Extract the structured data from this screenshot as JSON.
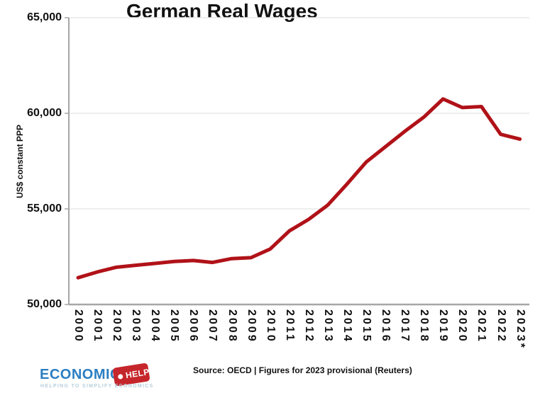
{
  "chart_data": {
    "type": "line",
    "title": "German Real Wages",
    "ylabel": "US$ constant PPP",
    "xlabel": "",
    "legend": "none",
    "grid": "horizontal-light",
    "ylim": [
      50000,
      65000
    ],
    "x_tick_labels": [
      "2000",
      "2001",
      "2002",
      "2003",
      "2004",
      "2005",
      "2006",
      "2007",
      "2008",
      "2009",
      "2010",
      "2011",
      "2012",
      "2013",
      "2014",
      "2015",
      "2016",
      "2017",
      "2018",
      "2019",
      "2020",
      "2021",
      "2022",
      "2023*"
    ],
    "y_ticks": [
      {
        "label": "65,000",
        "value": 65000
      },
      {
        "label": "60,000",
        "value": 60000
      },
      {
        "label": "55,000",
        "value": 55000
      },
      {
        "label": "50,000",
        "value": 50000
      }
    ],
    "gridline_values": [
      55000,
      60000,
      65000
    ],
    "series": [
      {
        "name": "German real wages (US$ constant PPP)",
        "color": "#b01218",
        "values": [
          51400,
          51700,
          51950,
          52050,
          52150,
          52250,
          52300,
          52200,
          52400,
          52450,
          52900,
          53850,
          54450,
          55200,
          56300,
          57450,
          58250,
          59050,
          59800,
          60750,
          60300,
          60350,
          58900,
          58650
        ]
      }
    ]
  },
  "colors": {
    "line": "#b01218",
    "axis": "#a6a6a6",
    "gridline": "#e9e9e9",
    "text": "#111111",
    "logo_blue": "#2b7ec2",
    "logo_tag_red": "#c5262b",
    "logo_tagline": "#b5cedd"
  },
  "footer": {
    "source": "Source:  OECD | Figures for 2023 provisional (Reuters)"
  },
  "logo": {
    "name": "ECONOMICS",
    "tag": "HELP",
    "tagline": "HELPING TO SIMPLIFY ECONOMICS"
  }
}
